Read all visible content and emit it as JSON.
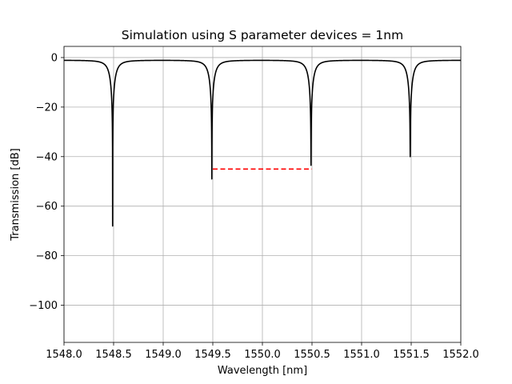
{
  "chart_data": {
    "type": "line",
    "title": "Simulation using S parameter devices = 1nm",
    "xlabel": "Wavelength [nm]",
    "ylabel": "Transmission [dB]",
    "xlim": [
      1548.0,
      1552.0
    ],
    "ylim": [
      -115,
      4.5
    ],
    "x_ticks": [
      1548.0,
      1548.5,
      1549.0,
      1549.5,
      1550.0,
      1550.5,
      1551.0,
      1551.5,
      1552.0
    ],
    "x_tick_labels": [
      "1548.0",
      "1548.5",
      "1549.0",
      "1549.5",
      "1550.0",
      "1550.5",
      "1551.0",
      "1551.5",
      "1552.0"
    ],
    "y_ticks": [
      0,
      -20,
      -40,
      -60,
      -80,
      -100
    ],
    "y_tick_labels": [
      "0",
      "−20",
      "−40",
      "−60",
      "−80",
      "−100"
    ],
    "grid": true,
    "series": [
      {
        "color": "#000000",
        "line_style": "solid",
        "baseline_db": -1.0,
        "resonance_extinction": 0.7,
        "resonances": [
          {
            "x": 1548.49,
            "min_y": -68
          },
          {
            "x": 1549.49,
            "min_y": -49
          },
          {
            "x": 1550.49,
            "min_y": -43.5
          },
          {
            "x": 1551.49,
            "min_y": -40
          }
        ]
      },
      {
        "color": "#ff0000",
        "line_style": "dashed",
        "x": [
          1549.5,
          1550.5
        ],
        "y": [
          -45,
          -45
        ]
      }
    ]
  }
}
